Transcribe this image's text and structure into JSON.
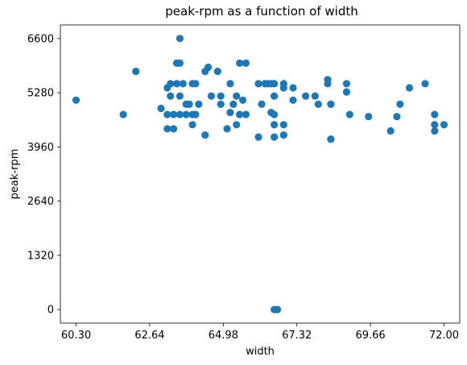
{
  "chart_data": {
    "type": "scatter",
    "title": "peak-rpm as a function of width",
    "xlabel": "width",
    "ylabel": "peak-rpm",
    "xlim": [
      59.8,
      72.5
    ],
    "ylim": [
      -330,
      6930
    ],
    "xticks": [
      60.3,
      62.64,
      64.98,
      67.32,
      69.66,
      72.0
    ],
    "xtick_labels": [
      "60.30",
      "62.64",
      "64.98",
      "67.32",
      "69.66",
      "72.00"
    ],
    "yticks": [
      0,
      1320,
      2640,
      3960,
      5280,
      6600
    ],
    "ytick_labels": [
      "0",
      "1320",
      "2640",
      "3960",
      "5280",
      "6600"
    ],
    "grid": false,
    "legend": false,
    "color": "#1f77b4",
    "x": [
      60.3,
      61.8,
      62.2,
      63.0,
      63.2,
      63.2,
      63.2,
      63.3,
      63.3,
      63.4,
      63.4,
      63.5,
      63.5,
      63.6,
      63.6,
      63.6,
      63.6,
      63.7,
      63.8,
      63.8,
      63.9,
      64.0,
      64.0,
      64.0,
      64.1,
      64.1,
      64.2,
      64.4,
      64.4,
      64.5,
      64.6,
      64.8,
      64.9,
      64.9,
      65.1,
      65.2,
      65.2,
      65.3,
      65.4,
      65.4,
      65.5,
      65.5,
      65.6,
      65.7,
      65.7,
      66.1,
      66.1,
      66.2,
      66.3,
      66.4,
      66.5,
      66.5,
      66.6,
      66.6,
      66.6,
      66.6,
      66.6,
      66.9,
      66.9,
      66.9,
      66.9,
      67.2,
      67.2,
      67.6,
      67.9,
      68.0,
      68.3,
      68.3,
      68.4,
      68.4,
      68.4,
      68.4,
      68.9,
      68.9,
      69.0,
      69.6,
      70.3,
      70.5,
      70.6,
      70.9,
      71.4,
      71.7,
      71.7,
      71.7,
      72.0,
      66.6,
      66.7
    ],
    "y": [
      5100,
      4750,
      5800,
      4900,
      5400,
      4750,
      4400,
      5500,
      5200,
      4750,
      4400,
      5500,
      6000,
      6000,
      5200,
      4750,
      6600,
      5500,
      5000,
      4750,
      5000,
      5500,
      4750,
      4500,
      5500,
      4750,
      5000,
      4250,
      5800,
      5900,
      5200,
      5800,
      5000,
      5200,
      4400,
      5500,
      4800,
      5000,
      5200,
      4500,
      6000,
      4750,
      5100,
      6000,
      4750,
      5500,
      4200,
      5000,
      5500,
      5500,
      4800,
      5500,
      5500,
      5200,
      4750,
      4500,
      4200,
      5500,
      5400,
      4500,
      4250,
      5400,
      5100,
      5200,
      5200,
      5000,
      5600,
      5500,
      4150,
      5000,
      5000,
      4150,
      5300,
      5500,
      4750,
      4700,
      4350,
      4700,
      5000,
      5400,
      5500,
      4750,
      4500,
      4350,
      4500,
      0,
      0
    ]
  }
}
